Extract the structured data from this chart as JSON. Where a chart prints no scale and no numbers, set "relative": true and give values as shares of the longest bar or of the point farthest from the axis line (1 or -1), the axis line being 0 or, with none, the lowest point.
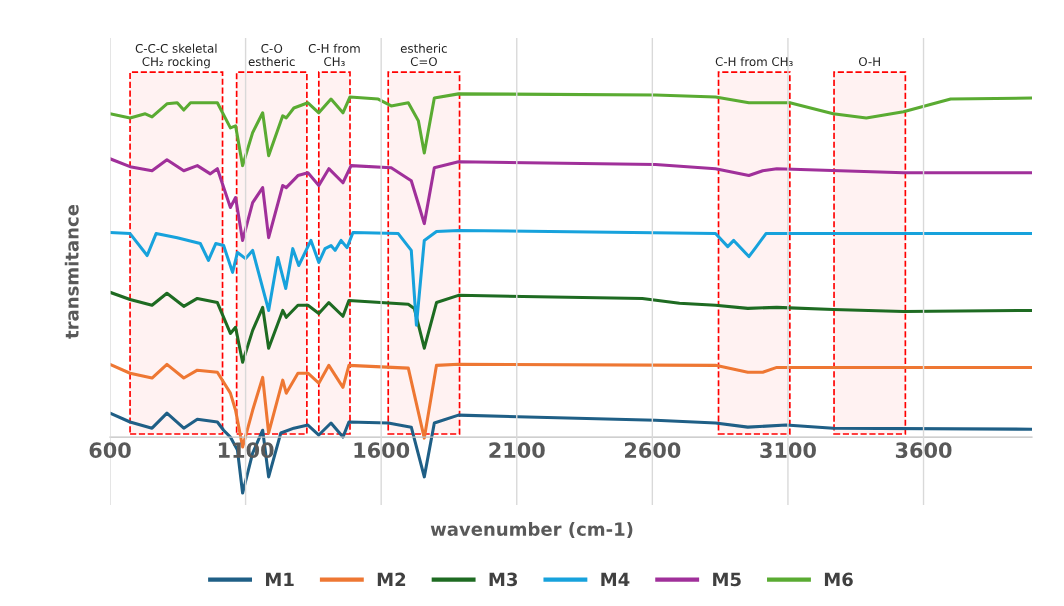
{
  "chart_data": {
    "type": "line",
    "relative": true,
    "xlabel": "wavenumber (cm-1)",
    "ylabel": "transmitance",
    "xlim": [
      600,
      4000
    ],
    "xticks": [
      600,
      1100,
      1600,
      2100,
      2600,
      3100,
      3600
    ],
    "grid": "x",
    "legend": "bottom",
    "line_style": "solid",
    "marker": "none",
    "bands": [
      {
        "axis": "x",
        "from": 674,
        "to": 1015,
        "label": "C-C-C skeletal\nCH₂ rocking",
        "color": "#ff0000"
      },
      {
        "axis": "x",
        "from": 1067,
        "to": 1326,
        "label": "C-O\nestheric",
        "color": "#ff0000"
      },
      {
        "axis": "x",
        "from": 1370,
        "to": 1485,
        "label": "C-H from\nCH₃",
        "color": "#ff0000"
      },
      {
        "axis": "x",
        "from": 1626,
        "to": 1889,
        "label": "estheric\nC=O",
        "color": "#ff0000"
      },
      {
        "axis": "x",
        "from": 2844,
        "to": 3107,
        "label": "C-H from CH₃",
        "color": "#ff0000"
      },
      {
        "axis": "x",
        "from": 3270,
        "to": 3533,
        "label": "O-H",
        "color": "#ff0000"
      }
    ],
    "series": [
      {
        "name": "M1",
        "color": "#1f5f86",
        "x": [
          600,
          674,
          755,
          810,
          872,
          922,
          996,
          1019,
          1044,
          1070,
          1089,
          1126,
          1163,
          1185,
          1230,
          1278,
          1330,
          1370,
          1415,
          1459,
          1481,
          1626,
          1711,
          1759,
          1796,
          1885,
          2611,
          2833,
          2952,
          3093,
          3267,
          4000
        ],
        "values": [
          0.07,
          0.044,
          0.026,
          0.07,
          0.026,
          0.052,
          0.044,
          0.02,
          0.0,
          -0.038,
          -0.163,
          -0.047,
          0.02,
          -0.116,
          0.012,
          0.026,
          0.035,
          0.006,
          0.041,
          0.0,
          0.044,
          0.041,
          0.029,
          -0.116,
          0.041,
          0.064,
          0.049,
          0.041,
          0.029,
          0.035,
          0.026,
          0.023
        ]
      },
      {
        "name": "M2",
        "color": "#ee7733",
        "x": [
          600,
          674,
          755,
          810,
          872,
          922,
          996,
          1044,
          1063,
          1089,
          1126,
          1163,
          1185,
          1237,
          1250,
          1293,
          1330,
          1370,
          1407,
          1459,
          1481,
          1700,
          1759,
          1804,
          1885,
          2833,
          2952,
          3007,
          3059,
          4000
        ],
        "values": [
          0.212,
          0.186,
          0.172,
          0.212,
          0.172,
          0.195,
          0.189,
          0.128,
          0.078,
          -0.029,
          0.078,
          0.174,
          0.012,
          0.166,
          0.128,
          0.186,
          0.186,
          0.157,
          0.209,
          0.145,
          0.209,
          0.201,
          -0.003,
          0.209,
          0.212,
          0.209,
          0.189,
          0.189,
          0.203,
          0.203
        ]
      },
      {
        "name": "M3",
        "color": "#1e6b22",
        "x": [
          600,
          674,
          755,
          810,
          872,
          922,
          996,
          1044,
          1063,
          1089,
          1126,
          1163,
          1185,
          1237,
          1250,
          1293,
          1330,
          1370,
          1407,
          1459,
          1481,
          1700,
          1722,
          1759,
          1804,
          1885,
          2563,
          2700,
          2833,
          2952,
          3059,
          3267,
          3526,
          4000
        ],
        "values": [
          0.422,
          0.401,
          0.384,
          0.419,
          0.381,
          0.404,
          0.392,
          0.302,
          0.32,
          0.218,
          0.311,
          0.378,
          0.259,
          0.369,
          0.349,
          0.384,
          0.384,
          0.36,
          0.392,
          0.352,
          0.398,
          0.387,
          0.375,
          0.259,
          0.392,
          0.413,
          0.404,
          0.39,
          0.384,
          0.375,
          0.378,
          0.372,
          0.366,
          0.369
        ]
      },
      {
        "name": "M4",
        "color": "#17a2dc",
        "x": [
          600,
          674,
          737,
          770,
          848,
          933,
          963,
          990,
          1019,
          1052,
          1070,
          1100,
          1126,
          1185,
          1219,
          1248,
          1274,
          1296,
          1341,
          1370,
          1393,
          1415,
          1430,
          1452,
          1474,
          1496,
          1663,
          1711,
          1730,
          1759,
          1804,
          1885,
          2833,
          2878,
          2900,
          2956,
          2981,
          3019,
          4000
        ],
        "values": [
          0.596,
          0.593,
          0.529,
          0.593,
          0.581,
          0.564,
          0.515,
          0.564,
          0.558,
          0.48,
          0.538,
          0.52,
          0.544,
          0.369,
          0.523,
          0.433,
          0.549,
          0.5,
          0.573,
          0.509,
          0.549,
          0.558,
          0.544,
          0.573,
          0.552,
          0.596,
          0.593,
          0.544,
          0.326,
          0.573,
          0.599,
          0.602,
          0.593,
          0.555,
          0.573,
          0.526,
          0.552,
          0.593,
          0.593
        ]
      },
      {
        "name": "M5",
        "color": "#a0309a",
        "x": [
          600,
          674,
          755,
          810,
          872,
          922,
          970,
          996,
          1044,
          1063,
          1089,
          1126,
          1163,
          1185,
          1237,
          1250,
          1293,
          1330,
          1370,
          1407,
          1459,
          1489,
          1637,
          1711,
          1737,
          1759,
          1796,
          1885,
          2611,
          2833,
          2956,
          3007,
          3059,
          3526,
          4000
        ],
        "values": [
          0.811,
          0.788,
          0.776,
          0.808,
          0.776,
          0.791,
          0.767,
          0.782,
          0.669,
          0.698,
          0.573,
          0.683,
          0.727,
          0.581,
          0.733,
          0.727,
          0.762,
          0.77,
          0.733,
          0.782,
          0.741,
          0.791,
          0.785,
          0.747,
          0.68,
          0.622,
          0.785,
          0.802,
          0.794,
          0.782,
          0.762,
          0.776,
          0.782,
          0.77,
          0.77
        ]
      },
      {
        "name": "M6",
        "color": "#5aab32",
        "x": [
          600,
          674,
          730,
          755,
          810,
          848,
          872,
          897,
          996,
          1044,
          1063,
          1089,
          1126,
          1163,
          1185,
          1237,
          1250,
          1278,
          1330,
          1370,
          1415,
          1459,
          1485,
          1589,
          1637,
          1700,
          1737,
          1759,
          1796,
          1885,
          2611,
          2833,
          2956,
          3007,
          3107,
          3267,
          3389,
          3526,
          3700,
          4000
        ],
        "values": [
          0.942,
          0.93,
          0.942,
          0.933,
          0.971,
          0.974,
          0.953,
          0.974,
          0.974,
          0.901,
          0.907,
          0.791,
          0.887,
          0.945,
          0.82,
          0.936,
          0.93,
          0.959,
          0.974,
          0.945,
          0.985,
          0.945,
          0.991,
          0.985,
          0.965,
          0.974,
          0.922,
          0.828,
          0.988,
          1.0,
          0.997,
          0.991,
          0.974,
          0.974,
          0.974,
          0.942,
          0.93,
          0.948,
          0.985,
          0.988
        ]
      }
    ]
  }
}
